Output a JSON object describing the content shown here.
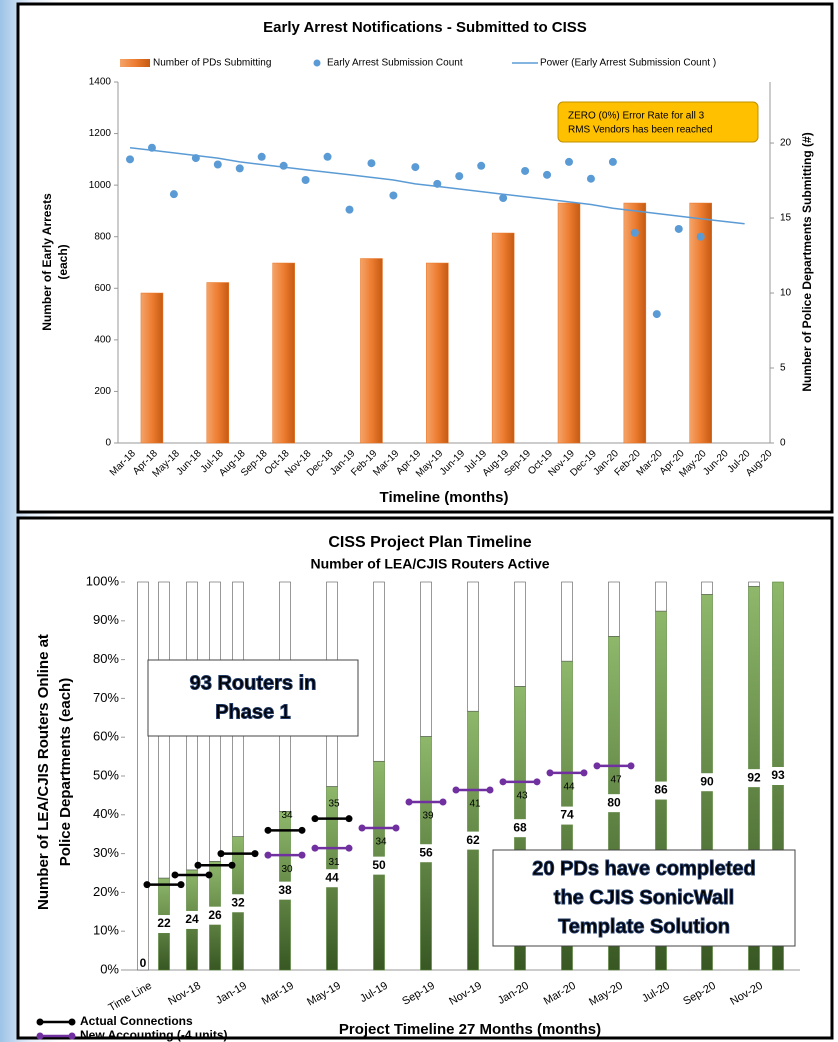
{
  "charts": [
    {
      "chart_data": {
        "type": "bar",
        "title": "Early Arrest Notifications - Submitted to CISS",
        "categories": [
          "Mar-18",
          "Apr-18",
          "May-18",
          "Jun-18",
          "Jul-18",
          "Aug-18",
          "Sep-18",
          "Oct-18",
          "Nov-18",
          "Dec-18",
          "Jan-19",
          "Feb-19",
          "Mar-19",
          "Apr-19",
          "May-19",
          "Jun-19",
          "Jul-19",
          "Aug-19",
          "Sep-19",
          "Oct-19",
          "Nov-19",
          "Dec-19",
          "Jan-20",
          "Feb-20",
          "Mar-20",
          "Apr-20",
          "May-20",
          "Jun-20",
          "Jul-20",
          "Aug-20"
        ],
        "ylim": [
          0,
          1400
        ],
        "yticks": [
          0,
          200,
          400,
          600,
          800,
          1000,
          1200,
          1400
        ],
        "y2lim": [
          0,
          24.07
        ],
        "y2ticks": [
          0,
          5,
          10,
          15,
          20
        ],
        "xlabel": "Timeline (months)",
        "ylabel": [
          "Number of Early Arrests",
          "(each)"
        ],
        "y2label": "Number of Police Departments Submitting (#)",
        "annotation": [
          "ZERO (0%) Error Rate for all 3",
          "RMS Vendors has been reached"
        ],
        "series": [
          {
            "name": "Number of PDs Submitting",
            "type": "bar",
            "axis": "y2",
            "color": "#e8711f",
            "values": [
              null,
              10,
              null,
              null,
              10.7,
              null,
              null,
              12,
              null,
              null,
              null,
              12.3,
              null,
              null,
              12,
              null,
              null,
              14,
              null,
              null,
              16,
              null,
              null,
              16,
              null,
              null,
              16,
              null,
              null,
              null
            ]
          },
          {
            "name": "Early Arrest Submission Count",
            "type": "scatter",
            "color": "#5b9bd5",
            "values": [
              1100,
              1145,
              965,
              1105,
              1080,
              1065,
              1110,
              1075,
              1020,
              1110,
              905,
              1085,
              960,
              1070,
              1005,
              1035,
              1075,
              950,
              1055,
              1040,
              1090,
              1025,
              1090,
              815,
              500,
              830,
              800,
              null,
              null,
              null
            ]
          },
          {
            "name": "Power (Early Arrest Submission Count )",
            "type": "line",
            "color": "#5b9bd5",
            "values": [
              1145,
              1135,
              1125,
              1115,
              1105,
              1090,
              1080,
              1070,
              1060,
              1050,
              1040,
              1030,
              1020,
              1005,
              995,
              985,
              975,
              965,
              955,
              945,
              935,
              925,
              910,
              900,
              890,
              880,
              870,
              860,
              850,
              null
            ]
          }
        ]
      }
    },
    {
      "chart_data": {
        "type": "stacked_bar",
        "title": "CISS Project Plan Timeline",
        "subtitle": "Number of LEA/CJIS Routers Active",
        "categories": [
          "Time Line",
          null,
          "Nov-18",
          null,
          "Jan-19",
          "Mar-19",
          "May-19",
          "Jul-19",
          "Sep-19",
          "Nov-19",
          "Jan-20",
          "Mar-20",
          "May-20",
          "Jul-20",
          "Sep-20",
          "Nov-20",
          null
        ],
        "ylim": [
          0,
          100
        ],
        "yticks": [
          {
            "value": 0,
            "label": "0%"
          },
          {
            "value": 10,
            "label": "10%"
          },
          {
            "value": 20,
            "label": "20%"
          },
          {
            "value": 30,
            "label": "30%"
          },
          {
            "value": 40,
            "label": "40%"
          },
          {
            "value": 50,
            "label": "50%"
          },
          {
            "value": 60,
            "label": "60%"
          },
          {
            "value": 70,
            "label": "70%"
          },
          {
            "value": 80,
            "label": "80%"
          },
          {
            "value": 90,
            "label": "90%"
          },
          {
            "value": 100,
            "label": "100%"
          }
        ],
        "ylabel": [
          "Number of LEA/CJIS Routers Online at",
          "Police Departments (each)"
        ],
        "xlabel": "Project Timeline 27 Months (months)",
        "series": [
          {
            "color": "#548235",
            "values": [
              0,
              23.7,
              25.8,
              28,
              34.4,
              40.9,
              47.3,
              53.8,
              60.2,
              66.7,
              73.1,
              79.6,
              86,
              92.5,
              96.8,
              98.9,
              100
            ],
            "labels": [
              0,
              22,
              24,
              26,
              32,
              38,
              44,
              50,
              56,
              62,
              68,
              74,
              80,
              86,
              90,
              92,
              93
            ]
          },
          {
            "color": "#ffffff",
            "values": [
              100,
              76.3,
              74.2,
              72,
              65.6,
              59.1,
              52.7,
              46.2,
              39.8,
              33.3,
              26.9,
              20.4,
              14,
              7.5,
              3.2,
              1.1,
              0
            ]
          }
        ],
        "lines": [
          {
            "name": "Actual Connections",
            "color": "#000000",
            "values": [
              null,
              22,
              24.5,
              27,
              30,
              36,
              39,
              null,
              null,
              null,
              null,
              null,
              null,
              null,
              null,
              null,
              null
            ],
            "labels": [
              null,
              null,
              null,
              null,
              null,
              34,
              35,
              null,
              null,
              null,
              null,
              null,
              null,
              null,
              null,
              null,
              null
            ]
          },
          {
            "name": "New Accounting (-4 units)",
            "color": "#7030a0",
            "values": [
              null,
              null,
              null,
              null,
              null,
              29.6,
              31.4,
              36.6,
              43.3,
              46.4,
              48.5,
              50.8,
              52.6,
              null,
              null,
              null,
              null
            ],
            "labels": [
              null,
              null,
              null,
              null,
              null,
              30,
              31,
              34,
              39,
              41,
              43,
              44,
              47,
              null,
              null,
              null,
              null
            ]
          }
        ],
        "boxes": [
          [
            "93 Routers in",
            "Phase 1"
          ],
          [
            "20 PDs have completed",
            "the CJIS SonicWall",
            "Template Solution"
          ]
        ]
      }
    }
  ]
}
